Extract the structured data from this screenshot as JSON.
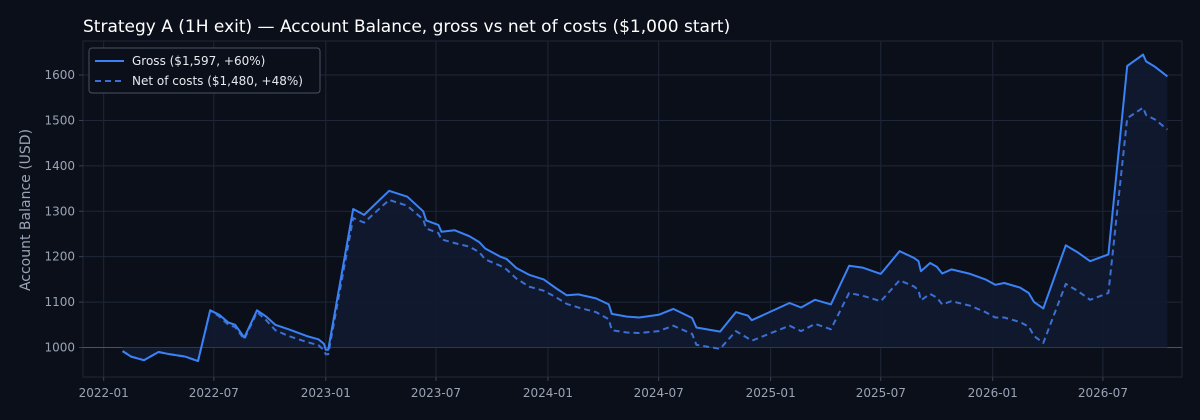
{
  "chart_data": {
    "type": "line",
    "title": "Strategy A (1H exit) — Account Balance, gross vs net of costs ($1,000 start)",
    "xlabel": "",
    "ylabel": "Account Balance (USD)",
    "x_ticks": [
      "2022-01",
      "2022-07",
      "2023-01",
      "2023-07",
      "2024-01",
      "2024-07",
      "2025-01",
      "2025-07",
      "2026-01",
      "2026-07"
    ],
    "y_ticks": [
      1000,
      1100,
      1200,
      1300,
      1400,
      1500,
      1600
    ],
    "xlim": [
      "2021-11-28",
      "2026-11-08"
    ],
    "ylim": [
      935,
      1675
    ],
    "baseline": 1000,
    "grid": true,
    "legend_position": "top-left",
    "colors": {
      "gross": "#3b82f6",
      "net": "#3b6fd4",
      "background": "#0b0f19",
      "fill": "#0f1a30"
    },
    "series": [
      {
        "name": "Gross ($1,597, +60%)",
        "style": "solid",
        "points": [
          [
            "2022-02-01",
            992
          ],
          [
            "2022-02-15",
            980
          ],
          [
            "2022-03-08",
            972
          ],
          [
            "2022-04-01",
            990
          ],
          [
            "2022-04-20",
            985
          ],
          [
            "2022-05-15",
            980
          ],
          [
            "2022-06-05",
            970
          ],
          [
            "2022-06-25",
            1082
          ],
          [
            "2022-07-10",
            1072
          ],
          [
            "2022-07-25",
            1055
          ],
          [
            "2022-08-05",
            1050
          ],
          [
            "2022-08-20",
            1022
          ],
          [
            "2022-09-10",
            1082
          ],
          [
            "2022-09-25",
            1068
          ],
          [
            "2022-10-10",
            1050
          ],
          [
            "2022-11-01",
            1040
          ],
          [
            "2022-12-01",
            1025
          ],
          [
            "2022-12-20",
            1018
          ],
          [
            "2022-12-29",
            1008
          ],
          [
            "2023-01-01",
            995
          ],
          [
            "2023-01-05",
            995
          ],
          [
            "2023-02-15",
            1305
          ],
          [
            "2023-03-05",
            1292
          ],
          [
            "2023-04-15",
            1345
          ],
          [
            "2023-05-15",
            1332
          ],
          [
            "2023-06-10",
            1300
          ],
          [
            "2023-06-15",
            1280
          ],
          [
            "2023-07-05",
            1270
          ],
          [
            "2023-07-10",
            1255
          ],
          [
            "2023-08-01",
            1258
          ],
          [
            "2023-08-25",
            1245
          ],
          [
            "2023-09-10",
            1232
          ],
          [
            "2023-09-20",
            1218
          ],
          [
            "2023-10-15",
            1200
          ],
          [
            "2023-10-25",
            1195
          ],
          [
            "2023-11-10",
            1175
          ],
          [
            "2023-12-01",
            1160
          ],
          [
            "2023-12-25",
            1150
          ],
          [
            "2024-01-15",
            1130
          ],
          [
            "2024-02-01",
            1115
          ],
          [
            "2024-02-20",
            1117
          ],
          [
            "2024-03-20",
            1108
          ],
          [
            "2024-04-10",
            1095
          ],
          [
            "2024-04-15",
            1074
          ],
          [
            "2024-05-10",
            1068
          ],
          [
            "2024-05-30",
            1066
          ],
          [
            "2024-07-01",
            1072
          ],
          [
            "2024-07-25",
            1085
          ],
          [
            "2024-08-25",
            1065
          ],
          [
            "2024-09-01",
            1044
          ],
          [
            "2024-10-10",
            1035
          ],
          [
            "2024-11-05",
            1078
          ],
          [
            "2024-11-25",
            1070
          ],
          [
            "2024-12-01",
            1060
          ],
          [
            "2025-02-01",
            1098
          ],
          [
            "2025-02-20",
            1088
          ],
          [
            "2025-03-15",
            1105
          ],
          [
            "2025-04-10",
            1095
          ],
          [
            "2025-05-10",
            1180
          ],
          [
            "2025-06-01",
            1176
          ],
          [
            "2025-07-01",
            1162
          ],
          [
            "2025-08-01",
            1212
          ],
          [
            "2025-08-25",
            1197
          ],
          [
            "2025-09-01",
            1190
          ],
          [
            "2025-09-05",
            1168
          ],
          [
            "2025-09-20",
            1186
          ],
          [
            "2025-10-01",
            1178
          ],
          [
            "2025-10-10",
            1163
          ],
          [
            "2025-10-25",
            1172
          ],
          [
            "2025-11-25",
            1162
          ],
          [
            "2025-12-20",
            1150
          ],
          [
            "2026-01-05",
            1138
          ],
          [
            "2026-01-20",
            1142
          ],
          [
            "2026-02-15",
            1132
          ],
          [
            "2026-03-01",
            1120
          ],
          [
            "2026-03-10",
            1100
          ],
          [
            "2026-03-25",
            1086
          ],
          [
            "2026-05-01",
            1225
          ],
          [
            "2026-05-20",
            1210
          ],
          [
            "2026-06-10",
            1190
          ],
          [
            "2026-07-10",
            1205
          ],
          [
            "2026-08-10",
            1620
          ],
          [
            "2026-09-05",
            1645
          ],
          [
            "2026-09-10",
            1630
          ],
          [
            "2026-09-25",
            1618
          ],
          [
            "2026-10-15",
            1597
          ]
        ]
      },
      {
        "name": "Net of costs ($1,480, +48%)",
        "style": "dashed",
        "points": [
          [
            "2022-02-01",
            992
          ],
          [
            "2022-02-15",
            980
          ],
          [
            "2022-03-08",
            972
          ],
          [
            "2022-04-01",
            990
          ],
          [
            "2022-04-20",
            985
          ],
          [
            "2022-05-15",
            980
          ],
          [
            "2022-06-05",
            970
          ],
          [
            "2022-06-25",
            1082
          ],
          [
            "2022-07-10",
            1068
          ],
          [
            "2022-07-25",
            1050
          ],
          [
            "2022-08-05",
            1045
          ],
          [
            "2022-08-20",
            1018
          ],
          [
            "2022-09-10",
            1078
          ],
          [
            "2022-09-25",
            1060
          ],
          [
            "2022-10-10",
            1038
          ],
          [
            "2022-11-01",
            1025
          ],
          [
            "2022-12-01",
            1012
          ],
          [
            "2022-12-20",
            1005
          ],
          [
            "2022-12-29",
            994
          ],
          [
            "2023-01-01",
            985
          ],
          [
            "2023-01-05",
            985
          ],
          [
            "2023-02-15",
            1285
          ],
          [
            "2023-03-05",
            1275
          ],
          [
            "2023-04-15",
            1325
          ],
          [
            "2023-05-15",
            1312
          ],
          [
            "2023-06-10",
            1282
          ],
          [
            "2023-06-15",
            1262
          ],
          [
            "2023-07-05",
            1252
          ],
          [
            "2023-07-10",
            1238
          ],
          [
            "2023-08-01",
            1230
          ],
          [
            "2023-08-25",
            1222
          ],
          [
            "2023-09-10",
            1210
          ],
          [
            "2023-09-20",
            1194
          ],
          [
            "2023-10-15",
            1180
          ],
          [
            "2023-10-25",
            1172
          ],
          [
            "2023-11-10",
            1152
          ],
          [
            "2023-12-01",
            1134
          ],
          [
            "2023-12-25",
            1125
          ],
          [
            "2024-01-15",
            1110
          ],
          [
            "2024-02-01",
            1096
          ],
          [
            "2024-02-20",
            1088
          ],
          [
            "2024-03-20",
            1078
          ],
          [
            "2024-04-10",
            1062
          ],
          [
            "2024-04-15",
            1038
          ],
          [
            "2024-05-10",
            1033
          ],
          [
            "2024-05-30",
            1032
          ],
          [
            "2024-07-01",
            1036
          ],
          [
            "2024-07-25",
            1048
          ],
          [
            "2024-08-25",
            1030
          ],
          [
            "2024-09-01",
            1006
          ],
          [
            "2024-10-10",
            997
          ],
          [
            "2024-11-05",
            1036
          ],
          [
            "2024-11-25",
            1020
          ],
          [
            "2024-12-01",
            1015
          ],
          [
            "2025-02-01",
            1048
          ],
          [
            "2025-02-20",
            1036
          ],
          [
            "2025-03-15",
            1052
          ],
          [
            "2025-04-10",
            1040
          ],
          [
            "2025-05-10",
            1120
          ],
          [
            "2025-06-01",
            1114
          ],
          [
            "2025-07-01",
            1102
          ],
          [
            "2025-08-01",
            1148
          ],
          [
            "2025-08-25",
            1134
          ],
          [
            "2025-09-01",
            1126
          ],
          [
            "2025-09-05",
            1104
          ],
          [
            "2025-09-20",
            1118
          ],
          [
            "2025-10-01",
            1110
          ],
          [
            "2025-10-10",
            1095
          ],
          [
            "2025-10-25",
            1102
          ],
          [
            "2025-11-25",
            1092
          ],
          [
            "2025-12-20",
            1078
          ],
          [
            "2026-01-05",
            1066
          ],
          [
            "2026-01-20",
            1066
          ],
          [
            "2026-02-15",
            1056
          ],
          [
            "2026-03-01",
            1046
          ],
          [
            "2026-03-10",
            1025
          ],
          [
            "2026-03-25",
            1010
          ],
          [
            "2026-05-01",
            1140
          ],
          [
            "2026-05-20",
            1125
          ],
          [
            "2026-06-10",
            1105
          ],
          [
            "2026-07-10",
            1120
          ],
          [
            "2026-08-10",
            1505
          ],
          [
            "2026-09-05",
            1528
          ],
          [
            "2026-09-10",
            1512
          ],
          [
            "2026-09-25",
            1502
          ],
          [
            "2026-10-15",
            1480
          ]
        ]
      }
    ]
  }
}
